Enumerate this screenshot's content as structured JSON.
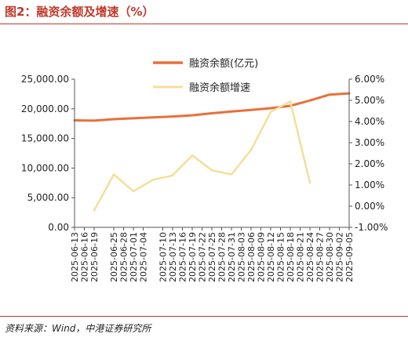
{
  "figure": {
    "title": "图2：融资余额及增速（%）",
    "source": "资料来源：Wind，中港证券研究所"
  },
  "chart_data": {
    "type": "line",
    "title": "",
    "x": [
      "2025-06-13",
      "2025-06-16",
      "2025-06-19",
      "2025-06-25",
      "2025-06-28",
      "2025-07-01",
      "2025-07-04",
      "2025-07-10",
      "2025-07-13",
      "2025-07-16",
      "2025-07-19",
      "2025-07-22",
      "2025-07-25",
      "2025-07-28",
      "2025-07-31",
      "2025-08-03",
      "2025-08-06",
      "2025-08-09",
      "2025-08-12",
      "2025-08-15",
      "2025-08-18",
      "2025-08-21",
      "2025-08-24",
      "2025-08-27",
      "2025-08-30",
      "2025-09-02",
      "2025-09-05"
    ],
    "y_left": {
      "ylim": [
        0,
        25000
      ],
      "ticks": [
        "0.00",
        "5,000.00",
        "10,000.00",
        "15,000.00",
        "20,000.00",
        "25,000.00"
      ],
      "tick_values": [
        0,
        5000,
        10000,
        15000,
        20000,
        25000
      ]
    },
    "y_right": {
      "ylim": [
        -1,
        6
      ],
      "ticks": [
        "-1.00%",
        "0.00%",
        "1.00%",
        "2.00%",
        "3.00%",
        "4.00%",
        "5.00%",
        "6.00%"
      ],
      "tick_values": [
        -1,
        0,
        1,
        2,
        3,
        4,
        5,
        6
      ]
    },
    "legend_placement": "top-center",
    "series": [
      {
        "name": "融资余额(亿元)",
        "axis": "left",
        "color": "#e8703a",
        "points": [
          [
            "2025-06-13",
            18050
          ],
          [
            "2025-06-19",
            18000
          ],
          [
            "2025-06-25",
            18250
          ],
          [
            "2025-07-01",
            18400
          ],
          [
            "2025-07-07",
            18550
          ],
          [
            "2025-07-13",
            18700
          ],
          [
            "2025-07-19",
            18900
          ],
          [
            "2025-07-25",
            19250
          ],
          [
            "2025-07-31",
            19550
          ],
          [
            "2025-08-06",
            19800
          ],
          [
            "2025-08-12",
            20100
          ],
          [
            "2025-08-18",
            20500
          ],
          [
            "2025-08-24",
            21400
          ],
          [
            "2025-08-30",
            22400
          ],
          [
            "2025-09-05",
            22600
          ]
        ]
      },
      {
        "name": "融资余额增速",
        "axis": "right",
        "color": "#f3df9a",
        "points": [
          [
            "2025-06-19",
            -0.2
          ],
          [
            "2025-06-25",
            1.5
          ],
          [
            "2025-07-01",
            0.7
          ],
          [
            "2025-07-07",
            1.25
          ],
          [
            "2025-07-13",
            1.45
          ],
          [
            "2025-07-19",
            2.4
          ],
          [
            "2025-07-25",
            1.7
          ],
          [
            "2025-07-31",
            1.5
          ],
          [
            "2025-08-06",
            2.65
          ],
          [
            "2025-08-12",
            4.45
          ],
          [
            "2025-08-18",
            4.95
          ],
          [
            "2025-08-24",
            1.1
          ]
        ]
      }
    ]
  }
}
